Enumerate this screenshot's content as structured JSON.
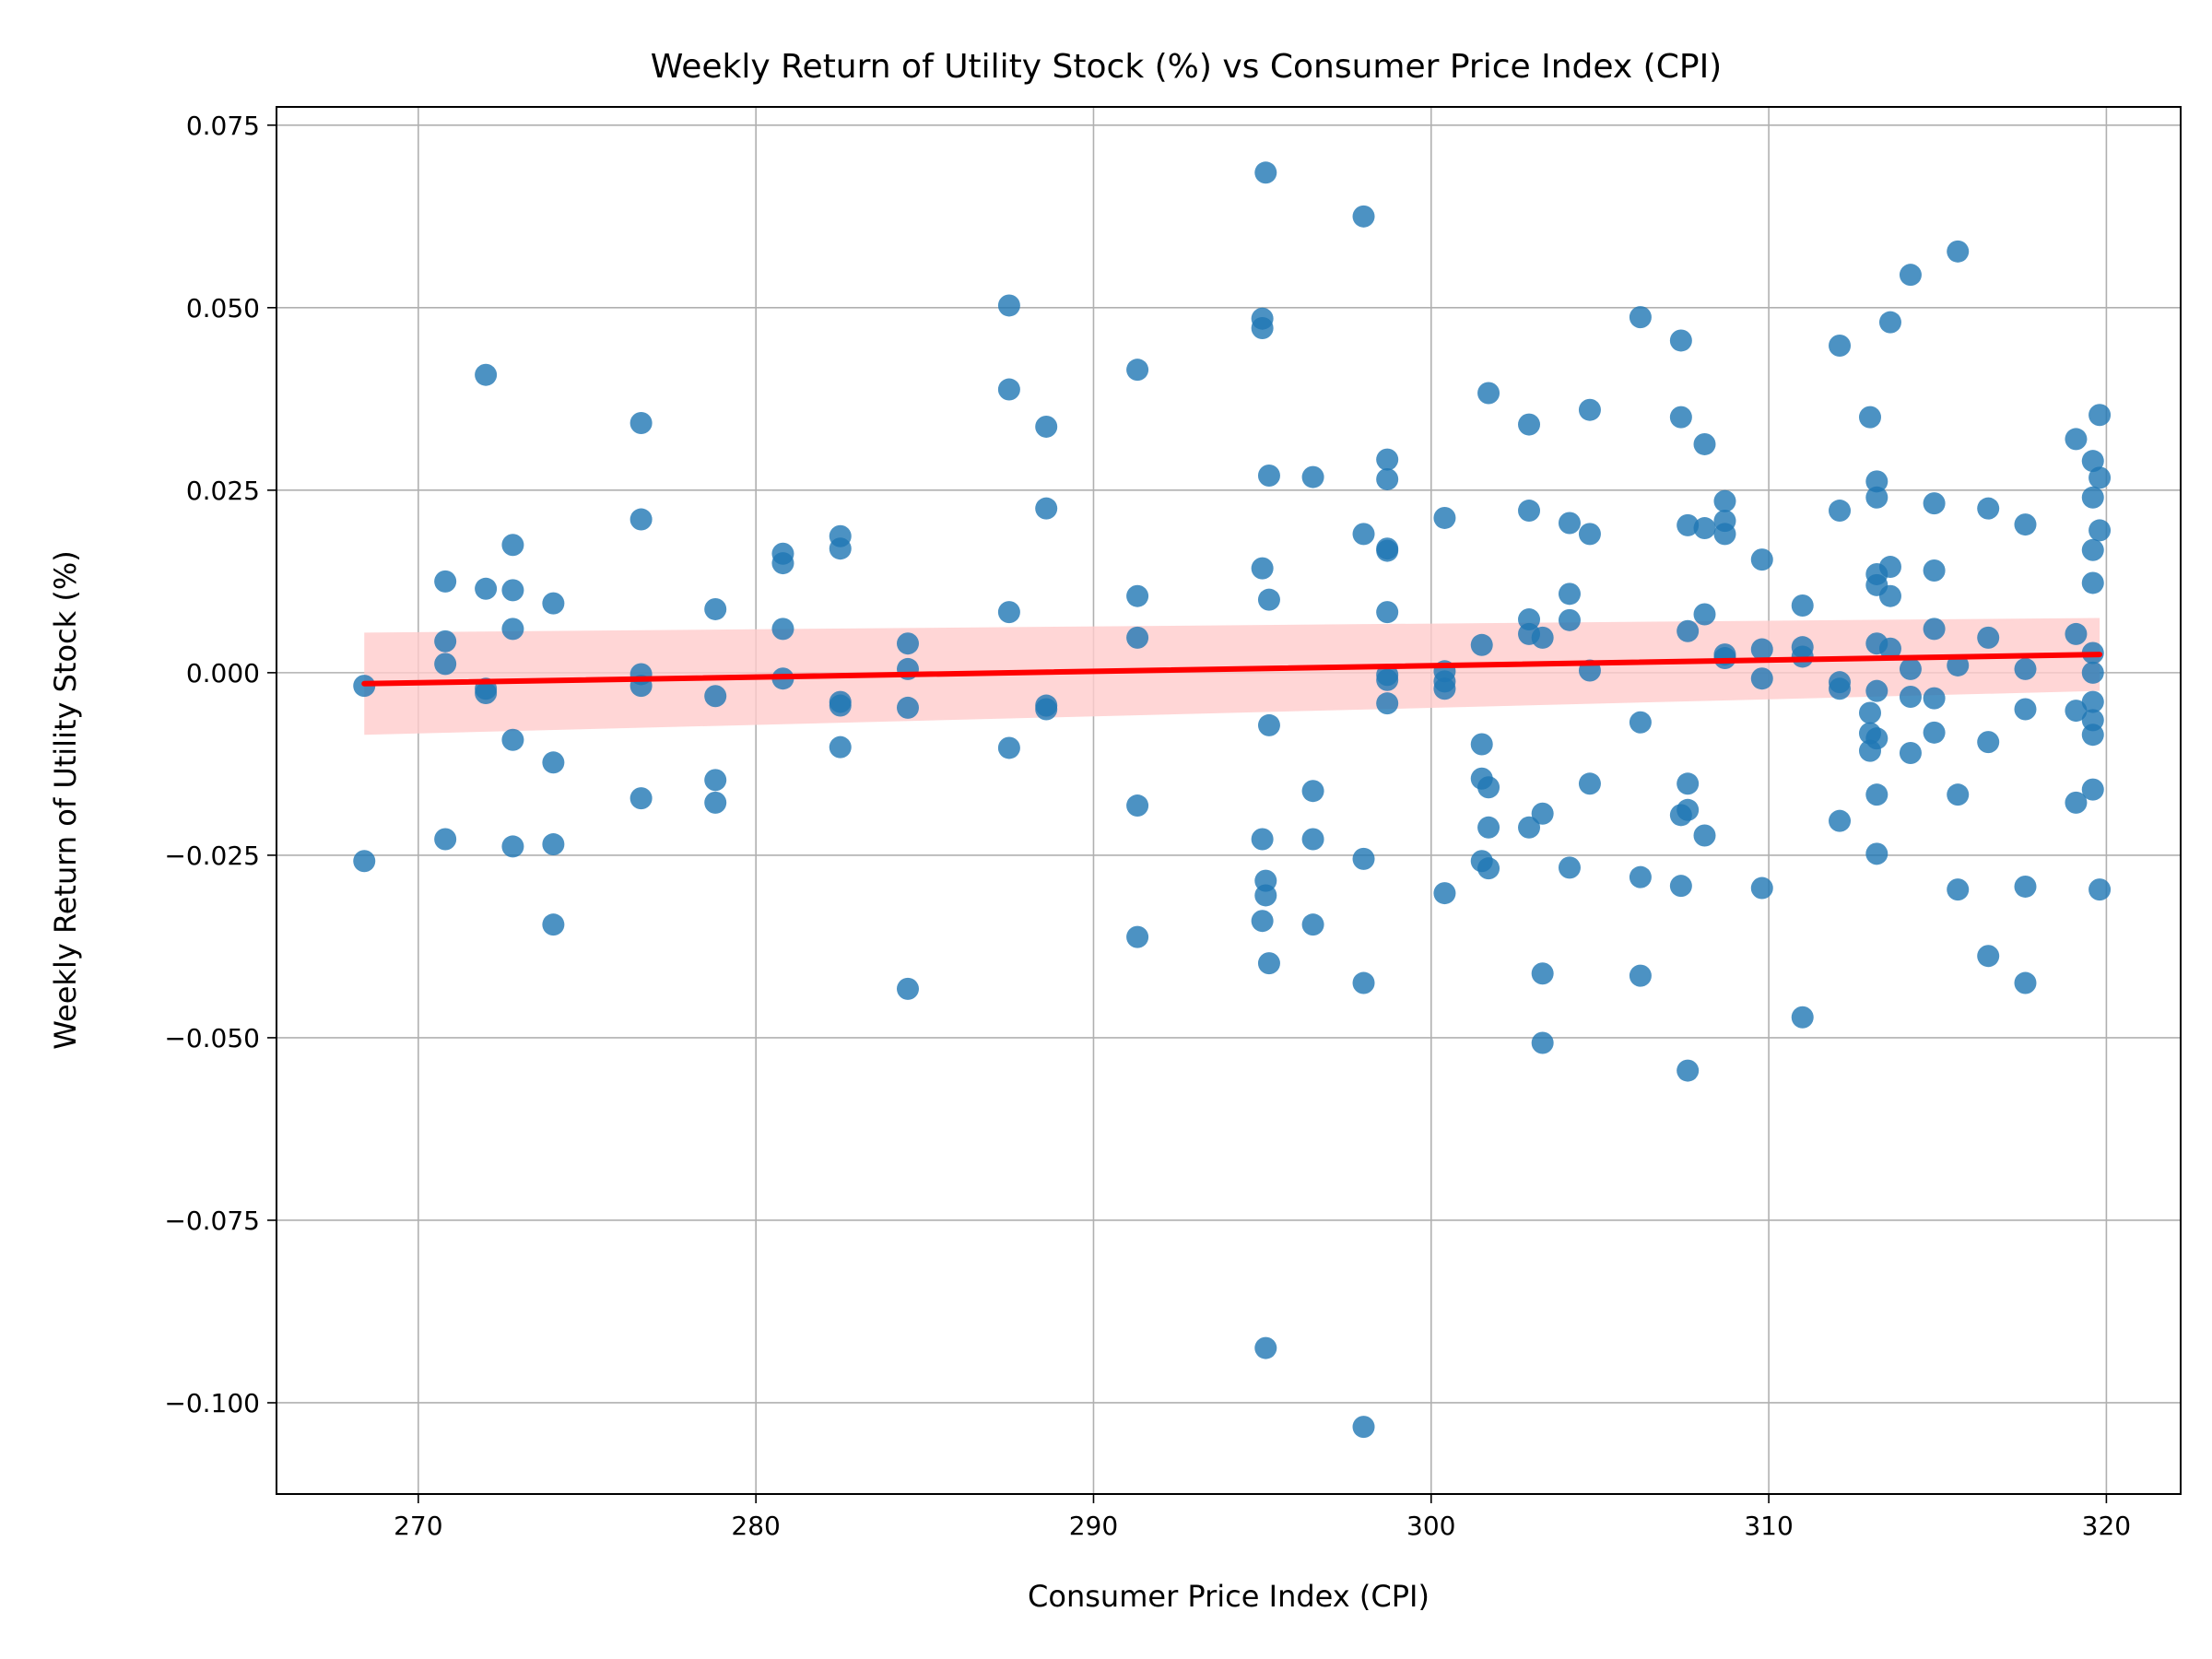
{
  "chart_data": {
    "type": "scatter",
    "title": "Weekly Return of Utility Stock (%) vs Consumer Price Index (CPI)",
    "xlabel": "Consumer Price Index (CPI)",
    "ylabel": "Weekly Return of Utility Stock (%)",
    "xlim": [
      265.8,
      322.2
    ],
    "ylim": [
      -0.1125,
      0.0775
    ],
    "xticks": [
      270,
      280,
      290,
      300,
      310,
      320
    ],
    "yticks": [
      0.075,
      0.05,
      0.025,
      0.0,
      -0.025,
      -0.05,
      -0.075,
      -0.1
    ],
    "ytick_labels": [
      "0.075",
      "0.050",
      "0.025",
      "0.000",
      "−0.025",
      "−0.050",
      "−0.075",
      "−0.100"
    ],
    "grid": true,
    "point_color": "#1f77b4",
    "regression": {
      "color": "#ff0000",
      "band_color": "#ffcccc",
      "x_range": [
        268.4,
        319.8
      ],
      "y_start": -0.0015,
      "y_end": 0.0025,
      "ci_start": [
        -0.0085,
        0.0055
      ],
      "ci_end": [
        -0.0025,
        0.0075
      ]
    },
    "points": [
      [
        268.4,
        -0.0018
      ],
      [
        268.4,
        -0.0258
      ],
      [
        270.8,
        0.0125
      ],
      [
        270.8,
        0.0043
      ],
      [
        270.8,
        0.0012
      ],
      [
        270.8,
        -0.0228
      ],
      [
        272.0,
        0.0408
      ],
      [
        272.0,
        0.0115
      ],
      [
        272.0,
        -0.0022
      ],
      [
        272.0,
        -0.0028
      ],
      [
        272.8,
        0.0175
      ],
      [
        272.8,
        0.0113
      ],
      [
        272.8,
        0.006
      ],
      [
        272.8,
        -0.0092
      ],
      [
        272.8,
        -0.0238
      ],
      [
        274.0,
        0.0095
      ],
      [
        274.0,
        -0.0123
      ],
      [
        274.0,
        -0.0235
      ],
      [
        274.0,
        -0.0345
      ],
      [
        276.6,
        0.0342
      ],
      [
        276.6,
        0.021
      ],
      [
        276.6,
        -0.0002
      ],
      [
        276.6,
        -0.0018
      ],
      [
        276.6,
        -0.0172
      ],
      [
        278.8,
        0.0087
      ],
      [
        278.8,
        -0.0032
      ],
      [
        278.8,
        -0.0147
      ],
      [
        278.8,
        -0.0178
      ],
      [
        280.8,
        0.0163
      ],
      [
        280.8,
        0.015
      ],
      [
        280.8,
        0.006
      ],
      [
        280.8,
        -0.0008
      ],
      [
        282.5,
        0.0187
      ],
      [
        282.5,
        0.017
      ],
      [
        282.5,
        -0.004
      ],
      [
        282.5,
        -0.0045
      ],
      [
        282.5,
        -0.0102
      ],
      [
        284.5,
        0.004
      ],
      [
        284.5,
        0.0005
      ],
      [
        284.5,
        -0.0048
      ],
      [
        284.5,
        -0.0433
      ],
      [
        287.5,
        0.0503
      ],
      [
        287.5,
        0.0388
      ],
      [
        287.5,
        0.0083
      ],
      [
        287.5,
        -0.0103
      ],
      [
        288.6,
        0.0337
      ],
      [
        288.6,
        0.0225
      ],
      [
        288.6,
        -0.0045
      ],
      [
        288.6,
        -0.005
      ],
      [
        291.3,
        0.0415
      ],
      [
        291.3,
        0.0105
      ],
      [
        291.3,
        0.0048
      ],
      [
        291.3,
        -0.0182
      ],
      [
        291.3,
        -0.0362
      ],
      [
        295.0,
        0.0485
      ],
      [
        295.0,
        0.0472
      ],
      [
        295.0,
        0.0143
      ],
      [
        295.0,
        -0.0228
      ],
      [
        295.0,
        -0.034
      ],
      [
        295.1,
        0.0685
      ],
      [
        295.1,
        -0.0285
      ],
      [
        295.1,
        -0.0305
      ],
      [
        295.1,
        -0.0925
      ],
      [
        295.2,
        0.027
      ],
      [
        295.2,
        0.01
      ],
      [
        295.2,
        -0.0072
      ],
      [
        295.2,
        -0.0398
      ],
      [
        296.5,
        0.0268
      ],
      [
        296.5,
        -0.0162
      ],
      [
        296.5,
        -0.0228
      ],
      [
        296.5,
        -0.0345
      ],
      [
        298.0,
        0.0625
      ],
      [
        298.0,
        0.019
      ],
      [
        298.0,
        -0.0255
      ],
      [
        298.0,
        -0.0425
      ],
      [
        298.0,
        -0.1033
      ],
      [
        298.7,
        0.0292
      ],
      [
        298.7,
        0.0265
      ],
      [
        298.7,
        0.017
      ],
      [
        298.7,
        0.0167
      ],
      [
        298.7,
        0.0083
      ],
      [
        298.7,
        -0.0003
      ],
      [
        298.7,
        -0.001
      ],
      [
        298.7,
        -0.0042
      ],
      [
        300.4,
        0.0212
      ],
      [
        300.4,
        0.0002
      ],
      [
        300.4,
        -0.0012
      ],
      [
        300.4,
        -0.0022
      ],
      [
        300.4,
        -0.0302
      ],
      [
        301.5,
        0.0038
      ],
      [
        301.5,
        -0.0098
      ],
      [
        301.5,
        -0.0145
      ],
      [
        301.5,
        -0.0258
      ],
      [
        301.7,
        0.0383
      ],
      [
        301.7,
        -0.0157
      ],
      [
        301.7,
        -0.0212
      ],
      [
        301.7,
        -0.0268
      ],
      [
        302.9,
        0.034
      ],
      [
        302.9,
        0.0222
      ],
      [
        302.9,
        0.0073
      ],
      [
        302.9,
        0.0053
      ],
      [
        302.9,
        -0.0212
      ],
      [
        303.3,
        0.0048
      ],
      [
        303.3,
        -0.0193
      ],
      [
        303.3,
        -0.0412
      ],
      [
        303.3,
        -0.0507
      ],
      [
        304.1,
        0.0205
      ],
      [
        304.1,
        0.0108
      ],
      [
        304.1,
        0.0072
      ],
      [
        304.1,
        -0.0267
      ],
      [
        304.7,
        0.036
      ],
      [
        304.7,
        0.019
      ],
      [
        304.7,
        0.0003
      ],
      [
        304.7,
        -0.0152
      ],
      [
        306.2,
        0.0487
      ],
      [
        306.2,
        -0.0068
      ],
      [
        306.2,
        -0.028
      ],
      [
        306.2,
        -0.0415
      ],
      [
        307.4,
        0.0455
      ],
      [
        307.4,
        0.035
      ],
      [
        307.4,
        -0.0195
      ],
      [
        307.4,
        -0.0292
      ],
      [
        307.6,
        0.0202
      ],
      [
        307.6,
        0.0057
      ],
      [
        307.6,
        -0.0152
      ],
      [
        307.6,
        -0.0188
      ],
      [
        307.6,
        -0.0545
      ],
      [
        308.1,
        0.0313
      ],
      [
        308.1,
        0.0198
      ],
      [
        308.1,
        0.008
      ],
      [
        308.1,
        -0.0223
      ],
      [
        308.7,
        0.0235
      ],
      [
        308.7,
        0.0208
      ],
      [
        308.7,
        0.019
      ],
      [
        308.7,
        0.0025
      ],
      [
        308.7,
        0.002
      ],
      [
        309.8,
        0.0155
      ],
      [
        309.8,
        0.0032
      ],
      [
        309.8,
        -0.0008
      ],
      [
        309.8,
        -0.0295
      ],
      [
        311.0,
        0.0092
      ],
      [
        311.0,
        0.0035
      ],
      [
        311.0,
        0.0022
      ],
      [
        311.0,
        -0.0472
      ],
      [
        312.1,
        0.0448
      ],
      [
        312.1,
        0.0222
      ],
      [
        312.1,
        -0.0013
      ],
      [
        312.1,
        -0.0022
      ],
      [
        312.1,
        -0.0203
      ],
      [
        313.0,
        0.035
      ],
      [
        313.0,
        -0.0055
      ],
      [
        313.0,
        -0.0083
      ],
      [
        313.0,
        -0.0107
      ],
      [
        313.2,
        0.0262
      ],
      [
        313.2,
        0.024
      ],
      [
        313.2,
        0.0135
      ],
      [
        313.2,
        0.012
      ],
      [
        313.2,
        0.004
      ],
      [
        313.2,
        -0.0025
      ],
      [
        313.2,
        -0.009
      ],
      [
        313.2,
        -0.0167
      ],
      [
        313.2,
        -0.0248
      ],
      [
        313.6,
        0.048
      ],
      [
        313.6,
        0.0145
      ],
      [
        313.6,
        0.0105
      ],
      [
        313.6,
        0.0033
      ],
      [
        314.2,
        0.0545
      ],
      [
        314.2,
        0.0005
      ],
      [
        314.2,
        -0.0033
      ],
      [
        314.2,
        -0.011
      ],
      [
        314.9,
        0.0232
      ],
      [
        314.9,
        0.014
      ],
      [
        314.9,
        0.006
      ],
      [
        314.9,
        -0.0035
      ],
      [
        314.9,
        -0.0082
      ],
      [
        315.6,
        0.0577
      ],
      [
        315.6,
        0.001
      ],
      [
        315.6,
        -0.0167
      ],
      [
        315.6,
        -0.0297
      ],
      [
        316.5,
        0.0225
      ],
      [
        316.5,
        0.0048
      ],
      [
        316.5,
        -0.0095
      ],
      [
        316.5,
        -0.0388
      ],
      [
        317.6,
        0.0203
      ],
      [
        317.6,
        0.0005
      ],
      [
        317.6,
        -0.005
      ],
      [
        317.6,
        -0.0293
      ],
      [
        317.6,
        -0.0425
      ],
      [
        319.1,
        0.032
      ],
      [
        319.1,
        0.0053
      ],
      [
        319.1,
        -0.0052
      ],
      [
        319.1,
        -0.0178
      ],
      [
        319.6,
        0.029
      ],
      [
        319.6,
        0.024
      ],
      [
        319.6,
        0.0168
      ],
      [
        319.6,
        0.0123
      ],
      [
        319.6,
        0.0027
      ],
      [
        319.6,
        0.0
      ],
      [
        319.6,
        -0.004
      ],
      [
        319.6,
        -0.0065
      ],
      [
        319.6,
        -0.0085
      ],
      [
        319.6,
        -0.016
      ],
      [
        319.8,
        0.0353
      ],
      [
        319.8,
        0.0267
      ],
      [
        319.8,
        0.0195
      ],
      [
        319.8,
        -0.0297
      ]
    ]
  }
}
